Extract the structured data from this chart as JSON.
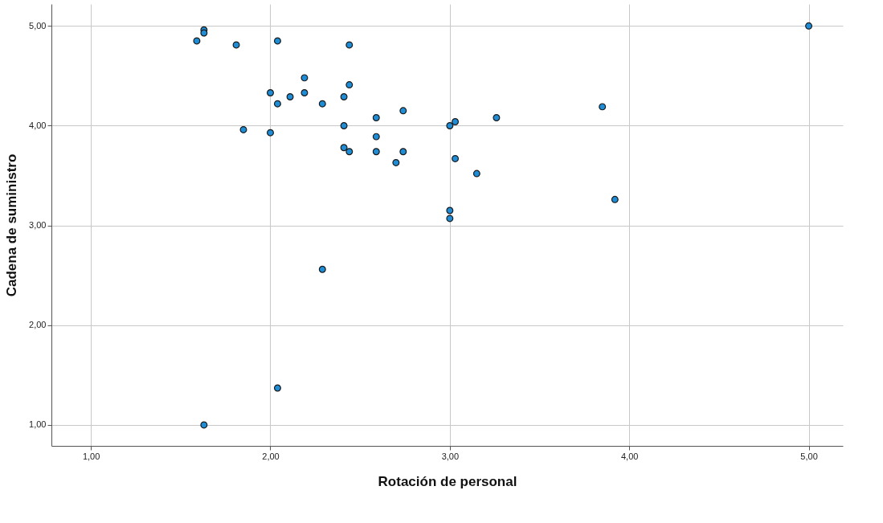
{
  "chart_data": {
    "type": "scatter",
    "xlabel": "Rotación de personal",
    "ylabel": "Cadena de suministro",
    "x": [
      5.0,
      1.63,
      1.63,
      1.59,
      1.81,
      2.04,
      2.44,
      2.19,
      2.44,
      2.0,
      2.19,
      2.11,
      2.41,
      2.04,
      2.29,
      2.74,
      3.85,
      3.26,
      2.59,
      3.03,
      3.0,
      2.41,
      1.85,
      2.0,
      2.59,
      2.41,
      2.44,
      2.59,
      2.74,
      2.7,
      3.03,
      3.15,
      3.92,
      3.0,
      3.0,
      2.29,
      2.04,
      1.63
    ],
    "series": [
      {
        "color": "#1f8dd6",
        "values": [
          5.0,
          4.96,
          4.93,
          4.85,
          4.81,
          4.85,
          4.81,
          4.48,
          4.41,
          4.33,
          4.33,
          4.29,
          4.29,
          4.22,
          4.22,
          4.15,
          4.19,
          4.08,
          4.08,
          4.04,
          4.0,
          4.0,
          3.96,
          3.93,
          3.89,
          3.78,
          3.74,
          3.74,
          3.74,
          3.63,
          3.67,
          3.52,
          3.26,
          3.15,
          3.07,
          2.56,
          1.37,
          1.0
        ]
      }
    ],
    "xlim": [
      0.78,
      5.19
    ],
    "ylim": [
      0.79,
      5.22
    ],
    "xticks": [
      {
        "value": 1,
        "label": "1,00"
      },
      {
        "value": 2,
        "label": "2,00"
      },
      {
        "value": 3,
        "label": "3,00"
      },
      {
        "value": 4,
        "label": "4,00"
      },
      {
        "value": 5,
        "label": "5,00"
      }
    ],
    "yticks": [
      {
        "value": 1,
        "label": "1,00"
      },
      {
        "value": 2,
        "label": "2,00"
      },
      {
        "value": 3,
        "label": "3,00"
      },
      {
        "value": 4,
        "label": "4,00"
      },
      {
        "value": 5,
        "label": "5,00"
      }
    ],
    "grid": true,
    "marker": "circle",
    "legend": false
  }
}
